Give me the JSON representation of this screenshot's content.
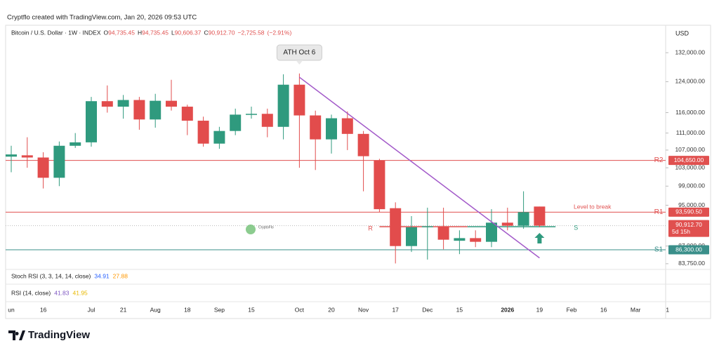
{
  "attribution": "Cryptflo created with TradingView.com, Jan 20, 2026 09:53 UTC",
  "brand": "TradingView",
  "watermark": "CryptoFlo",
  "chart_data": {
    "type": "candlestick",
    "symbol": "Bitcoin / U.S. Dollar · 1W · INDEX",
    "header_values": [
      {
        "prefix": "O",
        "value": 94735.45,
        "label": "94,735.45"
      },
      {
        "prefix": "H",
        "value": 94735.45,
        "label": "94,735.45"
      },
      {
        "prefix": "L",
        "value": 90606.37,
        "label": "90,606.37"
      },
      {
        "prefix": "C",
        "value": 90912.7,
        "label": "90,912.70"
      }
    ],
    "change": {
      "value": -2725.58,
      "label": "−2,725.58"
    },
    "change_pct": {
      "value": -2.91,
      "label": "(−2.91%)"
    },
    "currency": "USD",
    "categories": [
      "un",
      null,
      "16",
      null,
      null,
      "Jul",
      null,
      "21",
      null,
      "Aug",
      null,
      "18",
      null,
      "Sep",
      null,
      "15",
      null,
      null,
      "Oct",
      null,
      "20",
      null,
      "Nov",
      null,
      "17",
      null,
      "Dec",
      null,
      "15",
      null,
      null,
      "2026",
      null,
      "19",
      null,
      "Feb",
      null,
      "16",
      null,
      "Mar",
      null,
      "1"
    ],
    "open": [
      105500,
      105800,
      105300,
      100800,
      108000,
      108800,
      118900,
      117500,
      119200,
      114300,
      119000,
      117500,
      114000,
      108500,
      111500,
      115500,
      115700,
      112500,
      123200,
      115300,
      109500,
      114600,
      110800,
      104600,
      94400,
      87000,
      90600,
      90800,
      88000,
      88500,
      87800,
      91500,
      90900,
      94735.45,
      null,
      null,
      null,
      null,
      null,
      null,
      null,
      null
    ],
    "high": [
      108000,
      110000,
      106500,
      109000,
      111000,
      120000,
      123000,
      120500,
      120000,
      120800,
      124500,
      118000,
      115000,
      112500,
      117000,
      117500,
      117000,
      126000,
      126200,
      116500,
      115500,
      116300,
      111500,
      105000,
      95600,
      92800,
      94500,
      94500,
      90000,
      90000,
      94200,
      94500,
      97900,
      94735.45,
      null,
      null,
      null,
      null,
      null,
      null,
      null,
      null
    ],
    "low": [
      102000,
      103000,
      98500,
      99000,
      107500,
      107800,
      116000,
      114500,
      111800,
      112300,
      116500,
      110500,
      107800,
      107300,
      110500,
      114500,
      110000,
      109500,
      103000,
      102500,
      106200,
      107000,
      97900,
      93600,
      83800,
      85900,
      84500,
      86400,
      85500,
      86800,
      86800,
      90000,
      90300,
      90606.37,
      null,
      null,
      null,
      null,
      null,
      null,
      null,
      null
    ],
    "close": [
      106000,
      105300,
      100800,
      108000,
      108800,
      118900,
      117500,
      119200,
      114300,
      119000,
      117500,
      114000,
      108500,
      111500,
      115500,
      115700,
      112500,
      123200,
      115300,
      109500,
      114600,
      110800,
      105600,
      94200,
      87000,
      90600,
      90800,
      88200,
      88500,
      87800,
      91500,
      90900,
      93600,
      90912.7,
      null,
      null,
      null,
      null,
      null,
      null,
      null,
      null
    ],
    "up_color": "#2f9a7e",
    "down_color": "#e24c4c",
    "log_scale": true,
    "ylim": [
      82600,
      139200
    ],
    "yticks": [
      {
        "value": 132000,
        "label": "132,000.00"
      },
      {
        "value": 124000,
        "label": "124,000.00"
      },
      {
        "value": 116000,
        "label": "116,000.00"
      },
      {
        "value": 111000,
        "label": "111,000.00"
      },
      {
        "value": 107000,
        "label": "107,000.00"
      },
      {
        "value": 103000,
        "label": "103,000.00"
      },
      {
        "value": 99000,
        "label": "99,000.00"
      },
      {
        "value": 95000,
        "label": "95,000.00"
      },
      {
        "value": 87000,
        "label": "87,000.00"
      },
      {
        "value": 83750,
        "label": "83,750.00"
      }
    ],
    "levels": [
      {
        "name": "R2",
        "value": 104650,
        "label": "104,650.00",
        "color": "#e0504f"
      },
      {
        "name": "R1",
        "value": 93590.5,
        "label": "93,590.50",
        "color": "#e0504f",
        "annotation": "Level to break"
      },
      {
        "name": "S1",
        "value": 86300,
        "label": "86,300.00",
        "color": "#3a8f8a"
      }
    ],
    "last_price": {
      "value": 90912.7,
      "label": "90,912.70",
      "countdown": "5d 15h",
      "color": "#e0504f"
    },
    "zone": {
      "value": 90700,
      "x": [
        23,
        34
      ],
      "labels": [
        "R",
        "S"
      ],
      "colors": [
        "#e0504f",
        "#2f9a7e"
      ]
    },
    "trendline": {
      "x": [
        18,
        33
      ],
      "y": [
        125200,
        84800
      ],
      "color": "#a259c9"
    },
    "callout": {
      "text": "ATH Oct 6",
      "x": 18
    },
    "indicators": [
      {
        "name": "Stoch RSI (3, 3, 14, 14, close)",
        "values": [
          34.91,
          27.88
        ],
        "colors": [
          "#2962ff",
          "#ff9800"
        ]
      },
      {
        "name": "RSI (14, close)",
        "values": [
          41.83,
          41.95
        ],
        "colors": [
          "#7e57c2",
          "#e8b800"
        ]
      }
    ]
  }
}
